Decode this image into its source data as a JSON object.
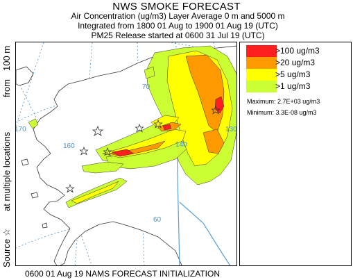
{
  "header": {
    "title": "NWS SMOKE FORECAST",
    "line1": "Air Concentration (ug/m3) Layer Average    0 m and  5000 m",
    "line2": "Integrated from 1800 01 Aug to 1900 01 Aug 19 (UTC)",
    "line3": "PM25 Release started at 0600 31 Jul 19 (UTC)"
  },
  "side": {
    "source": "Source ☆",
    "locations": "at multiple locations",
    "from": "from",
    "height": "100 m"
  },
  "legend": {
    "items": [
      {
        "label": ">100 ug/m3",
        "color": "#ff1f1f"
      },
      {
        "label": ">20 ug/m3",
        "color": "#ff9900"
      },
      {
        "label": ">5 ug/m3",
        "color": "#ffff00"
      },
      {
        "label": ">1 ug/m3",
        "color": "#ccff33"
      }
    ],
    "maximum": "Maximum: 2.7E+03 ug/m3",
    "minimum": "Minimum: 3.3E-08 ug/m3"
  },
  "map": {
    "longitude_labels": [
      "170",
      "160",
      "140",
      "130"
    ],
    "latitude_labels": [
      "70",
      "60"
    ],
    "grid_color": "#4a90c8",
    "border_color": "#5aa0d8",
    "coast_color": "#333333"
  },
  "footer": "0600 01 Aug 19 NAMS FORECAST INITIALIZATION"
}
